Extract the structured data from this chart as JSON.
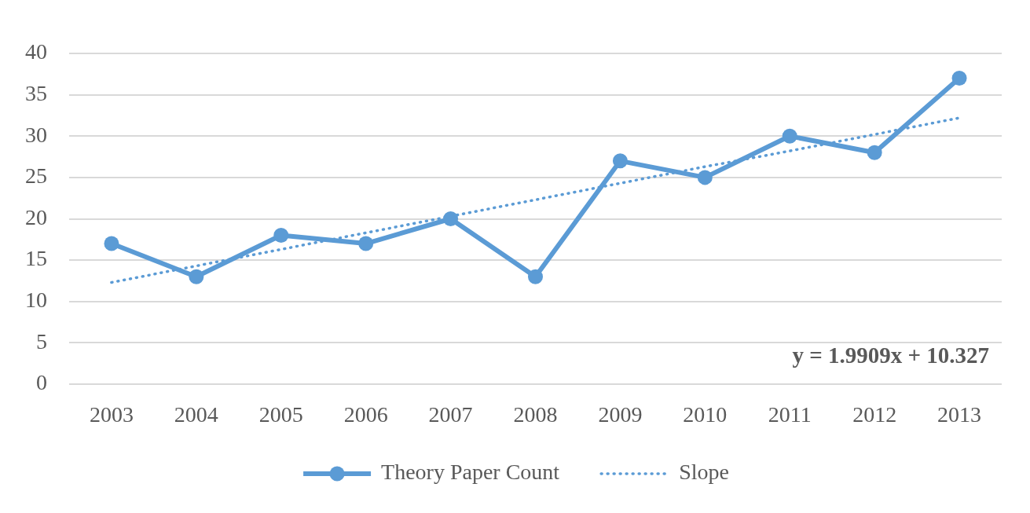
{
  "chart_data": {
    "type": "line",
    "categories": [
      "2003",
      "2004",
      "2005",
      "2006",
      "2007",
      "2008",
      "2009",
      "2010",
      "2011",
      "2012",
      "2013"
    ],
    "series": [
      {
        "name": "Theory Paper Count",
        "color": "#5b9bd5",
        "values": [
          17,
          13,
          18,
          17,
          20,
          13,
          27,
          25,
          30,
          28,
          37
        ],
        "marker": "circle",
        "line_style": "solid"
      },
      {
        "name": "Slope",
        "type": "line",
        "color": "#5b9bd5",
        "values": [
          12.3,
          14.3,
          16.3,
          18.3,
          20.3,
          22.3,
          24.3,
          26.3,
          28.2,
          30.2,
          32.2
        ],
        "marker": "none",
        "line_style": "dotted"
      }
    ],
    "ylim": [
      0,
      40
    ],
    "yticks": [
      0,
      5,
      10,
      15,
      20,
      25,
      30,
      35,
      40
    ],
    "grid": "y",
    "legend": "bottom",
    "annotations": [
      "y = 1.9909x + 10.327"
    ]
  }
}
